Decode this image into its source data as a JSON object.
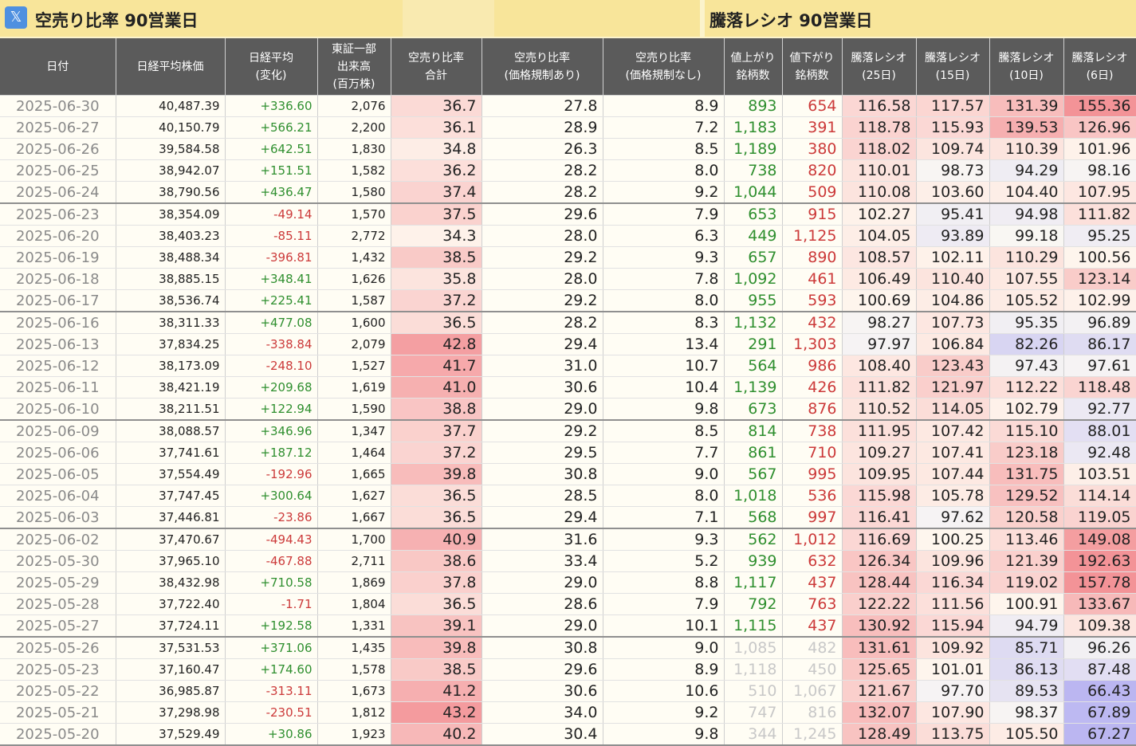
{
  "header": {
    "left_title": "空売り比率 90営業日",
    "right_title": "騰落レシオ 90営業日",
    "x_icon": "𝕏"
  },
  "columns": [
    {
      "key": "date",
      "label": "日付",
      "label2": ""
    },
    {
      "key": "nikkei",
      "label": "日経平均株価",
      "label2": ""
    },
    {
      "key": "change",
      "label": "日経平均",
      "label2": "(変化)"
    },
    {
      "key": "volume",
      "label": "東証一部 出来高",
      "label2": "(百万株)"
    },
    {
      "key": "short_total",
      "label": "空売り比率",
      "label2": "合計"
    },
    {
      "key": "short_reg",
      "label": "空売り比率",
      "label2": "(価格規制あり)"
    },
    {
      "key": "short_noreg",
      "label": "空売り比率",
      "label2": "(価格規制なし)"
    },
    {
      "key": "adv",
      "label": "値上がり",
      "label2": "銘柄数"
    },
    {
      "key": "dec",
      "label": "値下がり",
      "label2": "銘柄数"
    },
    {
      "key": "r25",
      "label": "騰落レシオ",
      "label2": "(25日)"
    },
    {
      "key": "r15",
      "label": "騰落レシオ",
      "label2": "(15日)"
    },
    {
      "key": "r10",
      "label": "騰落レシオ",
      "label2": "(10日)"
    },
    {
      "key": "r6",
      "label": "騰落レシオ",
      "label2": "(6日)"
    }
  ],
  "volume_header_line1": "東証一部",
  "volume_header_line2": "出来高",
  "rows": [
    [
      "2025-06-30",
      "40,487.39",
      "+336.60",
      "2,076",
      "36.7",
      "27.8",
      "8.9",
      "893",
      "654",
      "116.58",
      "117.57",
      "131.39",
      "155.36"
    ],
    [
      "2025-06-27",
      "40,150.79",
      "+566.21",
      "2,200",
      "36.1",
      "28.9",
      "7.2",
      "1,183",
      "391",
      "118.78",
      "115.93",
      "139.53",
      "126.96"
    ],
    [
      "2025-06-26",
      "39,584.58",
      "+642.51",
      "1,830",
      "34.8",
      "26.3",
      "8.5",
      "1,189",
      "380",
      "118.02",
      "109.74",
      "110.39",
      "101.96"
    ],
    [
      "2025-06-25",
      "38,942.07",
      "+151.51",
      "1,582",
      "36.2",
      "28.2",
      "8.0",
      "738",
      "820",
      "110.01",
      "98.73",
      "94.29",
      "98.16"
    ],
    [
      "2025-06-24",
      "38,790.56",
      "+436.47",
      "1,580",
      "37.4",
      "28.2",
      "9.2",
      "1,044",
      "509",
      "110.08",
      "103.60",
      "104.40",
      "107.95"
    ],
    [
      "2025-06-23",
      "38,354.09",
      "-49.14",
      "1,570",
      "37.5",
      "29.6",
      "7.9",
      "653",
      "915",
      "102.27",
      "95.41",
      "94.98",
      "111.82"
    ],
    [
      "2025-06-20",
      "38,403.23",
      "-85.11",
      "2,772",
      "34.3",
      "28.0",
      "6.3",
      "449",
      "1,125",
      "104.05",
      "93.89",
      "99.18",
      "95.25"
    ],
    [
      "2025-06-19",
      "38,488.34",
      "-396.81",
      "1,432",
      "38.5",
      "29.2",
      "9.3",
      "657",
      "890",
      "108.57",
      "102.11",
      "110.29",
      "100.56"
    ],
    [
      "2025-06-18",
      "38,885.15",
      "+348.41",
      "1,626",
      "35.8",
      "28.0",
      "7.8",
      "1,092",
      "461",
      "106.49",
      "110.40",
      "107.55",
      "123.14"
    ],
    [
      "2025-06-17",
      "38,536.74",
      "+225.41",
      "1,587",
      "37.2",
      "29.2",
      "8.0",
      "955",
      "593",
      "100.69",
      "104.86",
      "105.52",
      "102.99"
    ],
    [
      "2025-06-16",
      "38,311.33",
      "+477.08",
      "1,600",
      "36.5",
      "28.2",
      "8.3",
      "1,132",
      "432",
      "98.27",
      "107.73",
      "95.35",
      "96.89"
    ],
    [
      "2025-06-13",
      "37,834.25",
      "-338.84",
      "2,079",
      "42.8",
      "29.4",
      "13.4",
      "291",
      "1,303",
      "97.97",
      "106.84",
      "82.26",
      "86.17"
    ],
    [
      "2025-06-12",
      "38,173.09",
      "-248.10",
      "1,527",
      "41.7",
      "31.0",
      "10.7",
      "564",
      "986",
      "108.40",
      "123.43",
      "97.43",
      "97.61"
    ],
    [
      "2025-06-11",
      "38,421.19",
      "+209.68",
      "1,619",
      "41.0",
      "30.6",
      "10.4",
      "1,139",
      "426",
      "111.82",
      "121.97",
      "112.22",
      "118.48"
    ],
    [
      "2025-06-10",
      "38,211.51",
      "+122.94",
      "1,590",
      "38.8",
      "29.0",
      "9.8",
      "673",
      "876",
      "110.52",
      "114.05",
      "102.79",
      "92.77"
    ],
    [
      "2025-06-09",
      "38,088.57",
      "+346.96",
      "1,347",
      "37.7",
      "29.2",
      "8.5",
      "814",
      "738",
      "111.95",
      "107.42",
      "115.10",
      "88.01"
    ],
    [
      "2025-06-06",
      "37,741.61",
      "+187.12",
      "1,464",
      "37.2",
      "29.5",
      "7.7",
      "861",
      "710",
      "109.27",
      "107.41",
      "123.18",
      "92.48"
    ],
    [
      "2025-06-05",
      "37,554.49",
      "-192.96",
      "1,665",
      "39.8",
      "30.8",
      "9.0",
      "567",
      "995",
      "109.95",
      "107.44",
      "131.75",
      "103.51"
    ],
    [
      "2025-06-04",
      "37,747.45",
      "+300.64",
      "1,627",
      "36.5",
      "28.5",
      "8.0",
      "1,018",
      "536",
      "115.98",
      "105.78",
      "129.52",
      "114.14"
    ],
    [
      "2025-06-03",
      "37,446.81",
      "-23.86",
      "1,667",
      "36.5",
      "29.4",
      "7.1",
      "568",
      "997",
      "116.41",
      "97.62",
      "120.58",
      "119.05"
    ],
    [
      "2025-06-02",
      "37,470.67",
      "-494.43",
      "1,700",
      "40.9",
      "31.6",
      "9.3",
      "562",
      "1,012",
      "116.69",
      "100.25",
      "113.46",
      "149.08"
    ],
    [
      "2025-05-30",
      "37,965.10",
      "-467.88",
      "2,711",
      "38.6",
      "33.4",
      "5.2",
      "939",
      "632",
      "126.34",
      "109.96",
      "121.39",
      "192.63"
    ],
    [
      "2025-05-29",
      "38,432.98",
      "+710.58",
      "1,869",
      "37.8",
      "29.0",
      "8.8",
      "1,117",
      "437",
      "128.44",
      "116.34",
      "119.02",
      "157.78"
    ],
    [
      "2025-05-28",
      "37,722.40",
      "-1.71",
      "1,804",
      "36.5",
      "28.6",
      "7.9",
      "792",
      "763",
      "122.22",
      "111.56",
      "100.91",
      "133.67"
    ],
    [
      "2025-05-27",
      "37,724.11",
      "+192.58",
      "1,331",
      "39.1",
      "29.0",
      "10.1",
      "1,115",
      "437",
      "130.92",
      "115.94",
      "94.79",
      "109.38"
    ],
    [
      "2025-05-26",
      "37,531.53",
      "+371.06",
      "1,435",
      "39.8",
      "30.8",
      "9.0",
      "1,085",
      "482",
      "131.61",
      "109.92",
      "85.71",
      "96.26"
    ],
    [
      "2025-05-23",
      "37,160.47",
      "+174.60",
      "1,578",
      "38.5",
      "29.6",
      "8.9",
      "1,118",
      "450",
      "125.65",
      "101.01",
      "86.13",
      "87.48"
    ],
    [
      "2025-05-22",
      "36,985.87",
      "-313.11",
      "1,673",
      "41.2",
      "30.6",
      "10.6",
      "510",
      "1,067",
      "121.67",
      "97.70",
      "89.53",
      "66.43"
    ],
    [
      "2025-05-21",
      "37,298.98",
      "-230.51",
      "1,812",
      "43.2",
      "34.0",
      "9.2",
      "747",
      "816",
      "132.07",
      "107.90",
      "98.37",
      "67.89"
    ],
    [
      "2025-05-20",
      "37,529.49",
      "+30.86",
      "1,923",
      "40.2",
      "30.4",
      "9.8",
      "344",
      "1,245",
      "128.49",
      "113.75",
      "105.50",
      "67.27"
    ]
  ],
  "faded_from_row": 25,
  "colors": {
    "header_bg": "#5b5b5b",
    "title_bg": "#f8e59a",
    "positive": "#2f8f2f",
    "negative": "#cc3a3a",
    "heat_high": "#f3a3a8",
    "heat_low": "#b9b6f5",
    "page_bg": "#fffdf4"
  }
}
